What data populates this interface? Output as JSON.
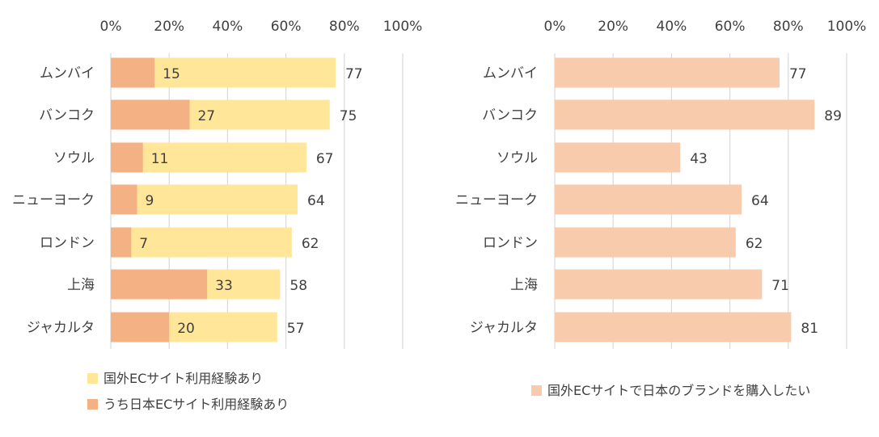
{
  "chart_data": [
    {
      "type": "bar",
      "orientation": "horizontal",
      "stacking": "overlapped",
      "categories": [
        "ムンバイ",
        "バンコク",
        "ソウル",
        "ニューヨーク",
        "ロンドン",
        "上海",
        "ジャカルタ"
      ],
      "xlim": [
        0,
        100
      ],
      "x_ticks": [
        "0%",
        "20%",
        "40%",
        "60%",
        "80%",
        "100%"
      ],
      "x_tick_values": [
        0,
        20,
        40,
        60,
        80,
        100
      ],
      "grid": true,
      "legend_position": "bottom-left",
      "series": [
        {
          "name": "国外ECサイト利用経験あり",
          "values": [
            77,
            75,
            67,
            64,
            62,
            58,
            57
          ],
          "color": "#FFE699"
        },
        {
          "name": "うち日本ECサイト利用経験あり",
          "values": [
            15,
            27,
            11,
            9,
            7,
            33,
            20
          ],
          "color": "#F4B183"
        }
      ]
    },
    {
      "type": "bar",
      "orientation": "horizontal",
      "categories": [
        "ムンバイ",
        "バンコク",
        "ソウル",
        "ニューヨーク",
        "ロンドン",
        "上海",
        "ジャカルタ"
      ],
      "xlim": [
        0,
        100
      ],
      "x_ticks": [
        "0%",
        "20%",
        "40%",
        "60%",
        "80%",
        "100%"
      ],
      "x_tick_values": [
        0,
        20,
        40,
        60,
        80,
        100
      ],
      "grid": true,
      "legend_position": "bottom-right",
      "series": [
        {
          "name": "国外ECサイトで日本のブランドを購入したい",
          "values": [
            77,
            89,
            43,
            64,
            62,
            71,
            81
          ],
          "color": "#F8CBAD"
        }
      ]
    }
  ],
  "colors": {
    "grid": "#D9D9D9",
    "text": "#404040"
  }
}
